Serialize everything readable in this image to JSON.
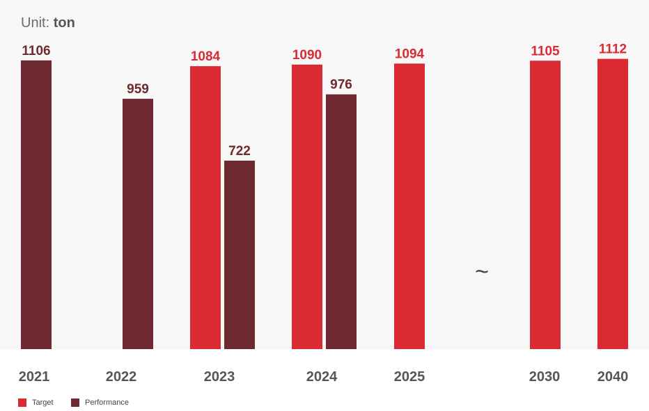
{
  "unit": {
    "label": "Unit:",
    "value": "ton"
  },
  "colors": {
    "target": "#da2b33",
    "performance": "#6f2a31",
    "background": "#f7f7f7"
  },
  "break_symbol": "~",
  "chart_data": {
    "type": "bar",
    "categories": [
      "2021",
      "2022",
      "2023",
      "2024",
      "2025",
      "2030",
      "2040"
    ],
    "series": [
      {
        "name": "Target",
        "values": [
          null,
          null,
          1084,
          1090,
          1094,
          1105,
          1112
        ]
      },
      {
        "name": "Performance",
        "values": [
          1106,
          959,
          722,
          976,
          null,
          null,
          null
        ]
      }
    ],
    "axis_break_between": [
      "2025",
      "2030"
    ],
    "ylim": [
      0,
      1200
    ],
    "grid": false,
    "legend": "bottom-left"
  },
  "legend": [
    {
      "label": "Target",
      "color": "#da2b33"
    },
    {
      "label": "Performance",
      "color": "#6f2a31"
    }
  ]
}
